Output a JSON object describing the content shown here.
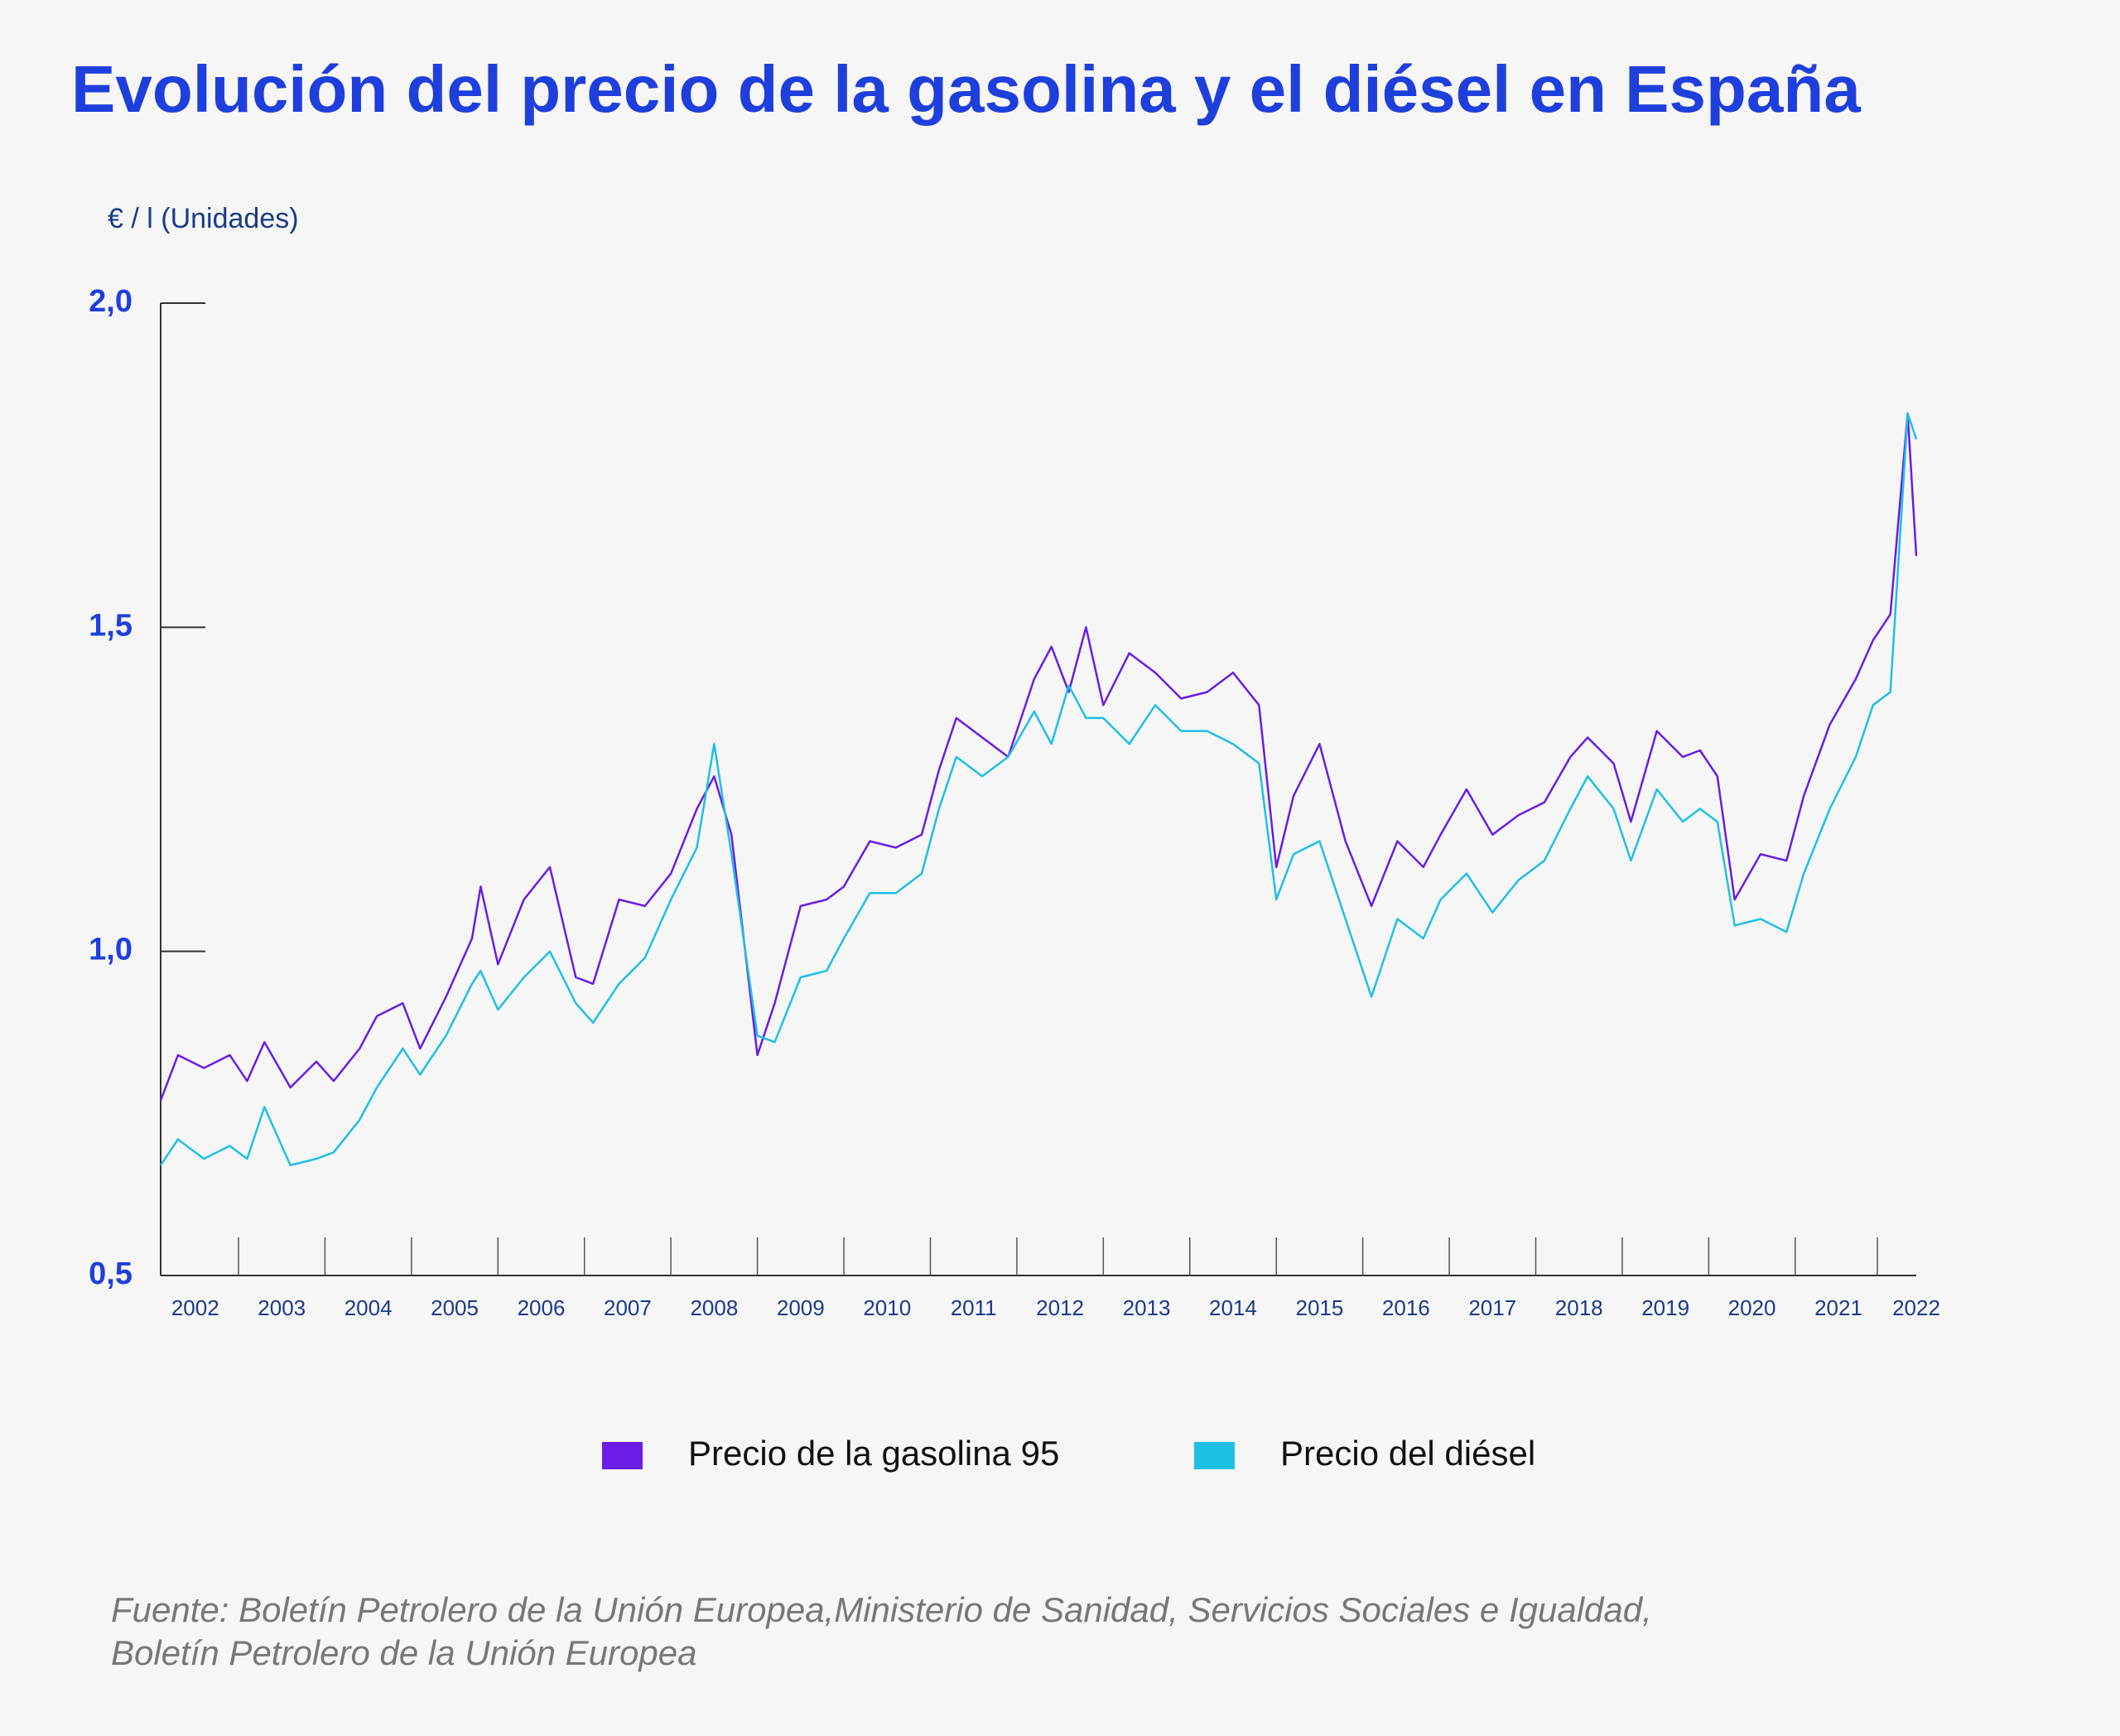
{
  "chart_data": {
    "type": "line",
    "title": "Evolución del precio de la gasolina y el diésel en España",
    "y_label": "€ / l (Unidades)",
    "source": [
      "Fuente: Boletín Petrolero de la Unión Europea,Ministerio de Sanidad, Servicios Sociales e Igualdad,",
      "Boletín Petrolero de la Unión Europea"
    ],
    "x": [
      2002.1,
      2002.3,
      2002.6,
      2002.9,
      2003.1,
      2003.3,
      2003.6,
      2003.9,
      2004.1,
      2004.4,
      2004.6,
      2004.9,
      2005.1,
      2005.4,
      2005.7,
      2005.8,
      2006.0,
      2006.3,
      2006.6,
      2006.9,
      2007.1,
      2007.4,
      2007.7,
      2008.0,
      2008.3,
      2008.5,
      2008.7,
      2009.0,
      2009.2,
      2009.5,
      2009.8,
      2010.0,
      2010.3,
      2010.6,
      2010.9,
      2011.1,
      2011.3,
      2011.6,
      2011.9,
      2012.2,
      2012.4,
      2012.6,
      2012.8,
      2013.0,
      2013.3,
      2013.6,
      2013.9,
      2014.2,
      2014.5,
      2014.8,
      2015.0,
      2015.2,
      2015.5,
      2015.8,
      2016.1,
      2016.4,
      2016.7,
      2016.9,
      2017.2,
      2017.5,
      2017.8,
      2018.1,
      2018.4,
      2018.6,
      2018.9,
      2019.1,
      2019.4,
      2019.7,
      2019.9,
      2020.1,
      2020.3,
      2020.6,
      2020.9,
      2021.1,
      2021.4,
      2021.7,
      2021.9,
      2022.1,
      2022.3,
      2022.4
    ],
    "series": [
      {
        "name": "Precio de la gasolina 95",
        "color": "#6a1de6",
        "values": [
          0.77,
          0.84,
          0.82,
          0.84,
          0.8,
          0.86,
          0.79,
          0.83,
          0.8,
          0.85,
          0.9,
          0.92,
          0.85,
          0.93,
          1.02,
          1.1,
          0.98,
          1.08,
          1.13,
          0.96,
          0.95,
          1.08,
          1.07,
          1.12,
          1.22,
          1.27,
          1.18,
          0.84,
          0.92,
          1.07,
          1.08,
          1.1,
          1.17,
          1.16,
          1.18,
          1.28,
          1.36,
          1.33,
          1.3,
          1.42,
          1.47,
          1.4,
          1.5,
          1.38,
          1.46,
          1.43,
          1.39,
          1.4,
          1.43,
          1.38,
          1.13,
          1.24,
          1.32,
          1.17,
          1.07,
          1.17,
          1.13,
          1.18,
          1.25,
          1.18,
          1.21,
          1.23,
          1.3,
          1.33,
          1.29,
          1.2,
          1.34,
          1.3,
          1.31,
          1.27,
          1.08,
          1.15,
          1.14,
          1.24,
          1.35,
          1.42,
          1.48,
          1.52,
          1.83,
          1.61
        ]
      },
      {
        "name": "Precio del diésel",
        "color": "#1ec0e6",
        "values": [
          0.67,
          0.71,
          0.68,
          0.7,
          0.68,
          0.76,
          0.67,
          0.68,
          0.69,
          0.74,
          0.79,
          0.85,
          0.81,
          0.87,
          0.95,
          0.97,
          0.91,
          0.96,
          1.0,
          0.92,
          0.89,
          0.95,
          0.99,
          1.08,
          1.16,
          1.32,
          1.15,
          0.87,
          0.86,
          0.96,
          0.97,
          1.02,
          1.09,
          1.09,
          1.12,
          1.22,
          1.3,
          1.27,
          1.3,
          1.37,
          1.32,
          1.41,
          1.36,
          1.36,
          1.32,
          1.38,
          1.34,
          1.34,
          1.32,
          1.29,
          1.08,
          1.15,
          1.17,
          1.05,
          0.93,
          1.05,
          1.02,
          1.08,
          1.12,
          1.06,
          1.11,
          1.14,
          1.22,
          1.27,
          1.22,
          1.14,
          1.25,
          1.2,
          1.22,
          1.2,
          1.04,
          1.05,
          1.03,
          1.12,
          1.22,
          1.3,
          1.38,
          1.4,
          1.83,
          1.79
        ]
      }
    ],
    "xlim": [
      2002.1,
      2022.4
    ],
    "xticks": [
      {
        "value": 2002.5,
        "label": "2002"
      },
      {
        "value": 2003.5,
        "label": "2003"
      },
      {
        "value": 2004.5,
        "label": "2004"
      },
      {
        "value": 2005.5,
        "label": "2005"
      },
      {
        "value": 2006.5,
        "label": "2006"
      },
      {
        "value": 2007.5,
        "label": "2007"
      },
      {
        "value": 2008.5,
        "label": "2008"
      },
      {
        "value": 2009.5,
        "label": "2009"
      },
      {
        "value": 2010.5,
        "label": "2010"
      },
      {
        "value": 2011.5,
        "label": "2011"
      },
      {
        "value": 2012.5,
        "label": "2012"
      },
      {
        "value": 2013.5,
        "label": "2013"
      },
      {
        "value": 2014.5,
        "label": "2014"
      },
      {
        "value": 2015.5,
        "label": "2015"
      },
      {
        "value": 2016.5,
        "label": "2016"
      },
      {
        "value": 2017.5,
        "label": "2017"
      },
      {
        "value": 2018.5,
        "label": "2018"
      },
      {
        "value": 2019.5,
        "label": "2019"
      },
      {
        "value": 2020.5,
        "label": "2020"
      },
      {
        "value": 2021.5,
        "label": "2021"
      },
      {
        "value": 2022.4,
        "label": "2022"
      }
    ],
    "ylim": [
      0.5,
      2.0
    ],
    "yticks": [
      {
        "value": 0.5,
        "label": "0,5"
      },
      {
        "value": 1.0,
        "label": "1,0"
      },
      {
        "value": 1.5,
        "label": "1,5"
      },
      {
        "value": 2.0,
        "label": "2,0"
      }
    ],
    "grid": false
  }
}
